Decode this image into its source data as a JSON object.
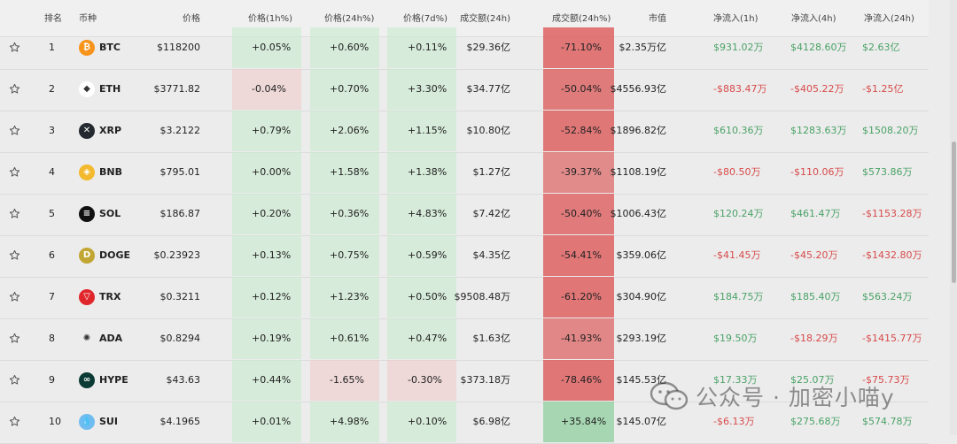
{
  "headers": {
    "rank": "排名",
    "coin": "币种",
    "price": "价格",
    "chg1h": "价格(1h%)",
    "chg24h": "价格(24h%)",
    "chg7d": "价格(7d%)",
    "volume": "成交额(24h)",
    "volchg": "成交额(24h%)",
    "mcap": "市值",
    "flow1h": "净流入(1h)",
    "flow4h": "净流入(4h)",
    "flow24h": "净流入(24h)"
  },
  "rows": [
    {
      "rank": "1",
      "symbol": "BTC",
      "icon": "bitcoin-icon",
      "color": "#f7931a",
      "glyph": "₿",
      "price": "$118200",
      "chg1h": "+0.05%",
      "chg24h": "+0.60%",
      "chg7d": "+0.11%",
      "volume": "$29.36亿",
      "volchg": "-71.10%",
      "mcap": "$2.35万亿",
      "flow1h": "$931.02万",
      "flow4h": "$4128.60万",
      "flow24h": "$2.63亿"
    },
    {
      "rank": "2",
      "symbol": "ETH",
      "icon": "ethereum-icon",
      "color": "#ffffff",
      "glyph": "◆",
      "price": "$3771.82",
      "chg1h": "-0.04%",
      "chg24h": "+0.70%",
      "chg7d": "+3.30%",
      "volume": "$34.77亿",
      "volchg": "-50.04%",
      "mcap": "$4556.93亿",
      "flow1h": "-$883.47万",
      "flow4h": "-$405.22万",
      "flow24h": "-$1.25亿"
    },
    {
      "rank": "3",
      "symbol": "XRP",
      "icon": "xrp-icon",
      "color": "#23292f",
      "glyph": "✕",
      "price": "$3.2122",
      "chg1h": "+0.79%",
      "chg24h": "+2.06%",
      "chg7d": "+1.15%",
      "volume": "$10.80亿",
      "volchg": "-52.84%",
      "mcap": "$1896.82亿",
      "flow1h": "$610.36万",
      "flow4h": "$1283.63万",
      "flow24h": "$1508.20万"
    },
    {
      "rank": "4",
      "symbol": "BNB",
      "icon": "bnb-icon",
      "color": "#f3ba2f",
      "glyph": "◈",
      "price": "$795.01",
      "chg1h": "+0.00%",
      "chg24h": "+1.58%",
      "chg7d": "+1.38%",
      "volume": "$1.27亿",
      "volchg": "-39.37%",
      "mcap": "$1108.19亿",
      "flow1h": "-$80.50万",
      "flow4h": "-$110.06万",
      "flow24h": "$573.86万"
    },
    {
      "rank": "5",
      "symbol": "SOL",
      "icon": "solana-icon",
      "color": "#111111",
      "glyph": "≡",
      "price": "$186.87",
      "chg1h": "+0.20%",
      "chg24h": "+0.36%",
      "chg7d": "+4.83%",
      "volume": "$7.42亿",
      "volchg": "-50.40%",
      "mcap": "$1006.43亿",
      "flow1h": "$120.24万",
      "flow4h": "$461.47万",
      "flow24h": "-$1153.28万"
    },
    {
      "rank": "6",
      "symbol": "DOGE",
      "icon": "dogecoin-icon",
      "color": "#c2a633",
      "glyph": "D",
      "price": "$0.23923",
      "chg1h": "+0.13%",
      "chg24h": "+0.75%",
      "chg7d": "+0.59%",
      "volume": "$4.35亿",
      "volchg": "-54.41%",
      "mcap": "$359.06亿",
      "flow1h": "-$41.45万",
      "flow4h": "-$45.20万",
      "flow24h": "-$1432.80万"
    },
    {
      "rank": "7",
      "symbol": "TRX",
      "icon": "tron-icon",
      "color": "#e0262b",
      "glyph": "▽",
      "price": "$0.3211",
      "chg1h": "+0.12%",
      "chg24h": "+1.23%",
      "chg7d": "+0.50%",
      "volume": "$9508.48万",
      "volchg": "-61.20%",
      "mcap": "$304.90亿",
      "flow1h": "$184.75万",
      "flow4h": "$185.40万",
      "flow24h": "$563.24万"
    },
    {
      "rank": "8",
      "symbol": "ADA",
      "icon": "cardano-icon",
      "color": "#ececec",
      "glyph": "✺",
      "price": "$0.8294",
      "chg1h": "+0.19%",
      "chg24h": "+0.61%",
      "chg7d": "+0.47%",
      "volume": "$1.63亿",
      "volchg": "-41.93%",
      "mcap": "$293.19亿",
      "flow1h": "$19.50万",
      "flow4h": "-$18.29万",
      "flow24h": "-$1415.77万"
    },
    {
      "rank": "9",
      "symbol": "HYPE",
      "icon": "hyperliquid-icon",
      "color": "#0b3b34",
      "glyph": "∞",
      "price": "$43.63",
      "chg1h": "+0.44%",
      "chg24h": "-1.65%",
      "chg7d": "-0.30%",
      "volume": "$373.18万",
      "volchg": "-78.46%",
      "mcap": "$145.53亿",
      "flow1h": "$17.33万",
      "flow4h": "$25.07万",
      "flow24h": "-$75.73万"
    },
    {
      "rank": "10",
      "symbol": "SUI",
      "icon": "sui-icon",
      "color": "#6fbcf0",
      "glyph": "💧",
      "price": "$4.1965",
      "chg1h": "+0.01%",
      "chg24h": "+4.98%",
      "chg7d": "+0.10%",
      "volume": "$6.98亿",
      "volchg": "+35.84%",
      "mcap": "$145.07亿",
      "flow1h": "-$6.13万",
      "flow4h": "$275.68万",
      "flow24h": "$574.78万"
    }
  ],
  "watermark": {
    "text": "公众号 · 加密小喵y",
    "icon": "wechat-icon"
  },
  "colors": {
    "positive": "#4aa267",
    "negative": "#d84a4a"
  }
}
